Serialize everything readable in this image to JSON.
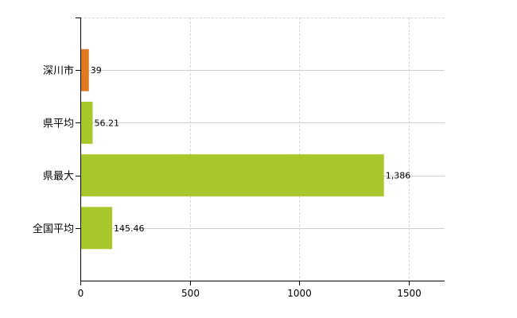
{
  "chart_data": {
    "type": "bar",
    "orientation": "horizontal",
    "categories": [
      "深川市",
      "県平均",
      "県最大",
      "全国平均"
    ],
    "values": [
      39,
      56.21,
      1386,
      145.46
    ],
    "data_labels": [
      "39",
      "56.21",
      "1,386",
      "145.46"
    ],
    "bar_colors": [
      "#e07a22",
      "#a8c72a",
      "#a8c72a",
      "#a8c72a"
    ],
    "xlim": [
      0,
      1663
    ],
    "xticks": [
      0,
      500,
      1000,
      1500
    ],
    "xtick_labels": [
      "0",
      "500",
      "1000",
      "1500"
    ],
    "grid": true,
    "legend": "none"
  }
}
